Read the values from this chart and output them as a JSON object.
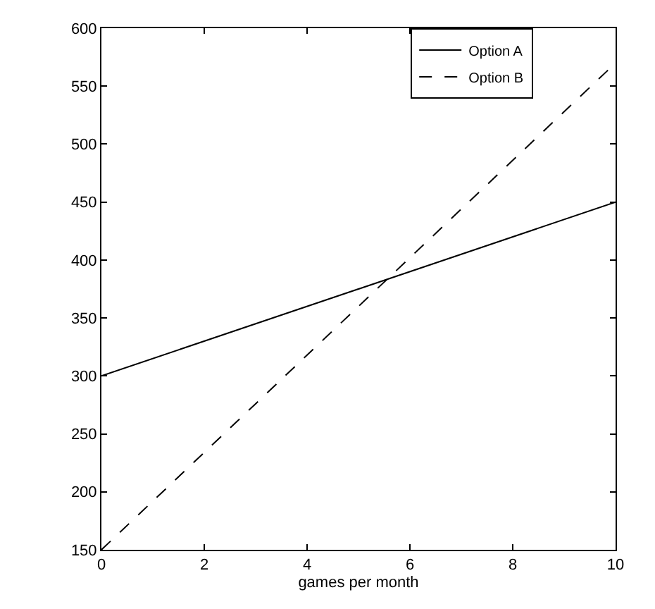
{
  "chart_data": {
    "type": "line",
    "xlabel": "games per month",
    "x": [
      0,
      10
    ],
    "series": [
      {
        "name": "Option A",
        "color": "#000000",
        "values": [
          300,
          450
        ],
        "line_style": "solid"
      },
      {
        "name": "Option B",
        "color": "#000000",
        "values": [
          150,
          570
        ],
        "line_style": "dashed"
      }
    ],
    "xlim": [
      0,
      10
    ],
    "xticks": [
      0,
      2,
      4,
      6,
      8,
      10
    ],
    "ylim": [
      150,
      600
    ],
    "yticks": [
      150,
      200,
      250,
      300,
      350,
      400,
      450,
      500,
      550,
      600
    ],
    "legend": "top right",
    "marker": "none"
  }
}
